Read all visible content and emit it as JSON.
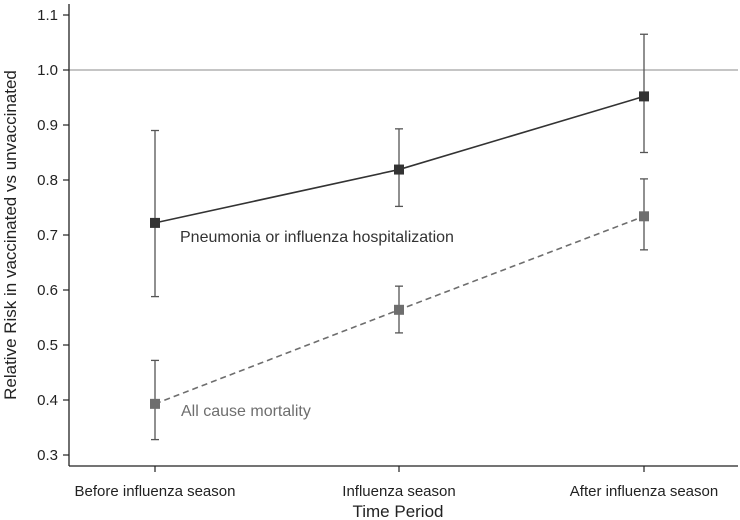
{
  "chart_data": {
    "type": "line",
    "title": "",
    "xlabel": "Time Period",
    "ylabel": "Relative Risk in vaccinated vs unvaccinated",
    "categories": [
      "Before influenza season",
      "Influenza season",
      "After influenza season"
    ],
    "ylim": [
      0.28,
      1.12
    ],
    "yticks": [
      "0.3",
      "0.4",
      "0.5",
      "0.6",
      "0.7",
      "0.8",
      "0.9",
      "1.0",
      "1.1"
    ],
    "reference_line": 1.0,
    "grid": false,
    "series": [
      {
        "name": "Pneumonia or influenza hospitalization",
        "values": [
          0.722,
          0.819,
          0.952
        ],
        "lower": [
          0.588,
          0.752,
          0.85
        ],
        "upper": [
          0.89,
          0.893,
          1.065
        ],
        "color": "#333333",
        "line_style": "solid",
        "marker": "square"
      },
      {
        "name": "All cause mortality",
        "values": [
          0.393,
          0.564,
          0.734
        ],
        "lower": [
          0.328,
          0.522,
          0.673
        ],
        "upper": [
          0.472,
          0.607,
          0.802
        ],
        "color": "#6e6e6e",
        "line_style": "dashed",
        "marker": "square"
      }
    ]
  }
}
